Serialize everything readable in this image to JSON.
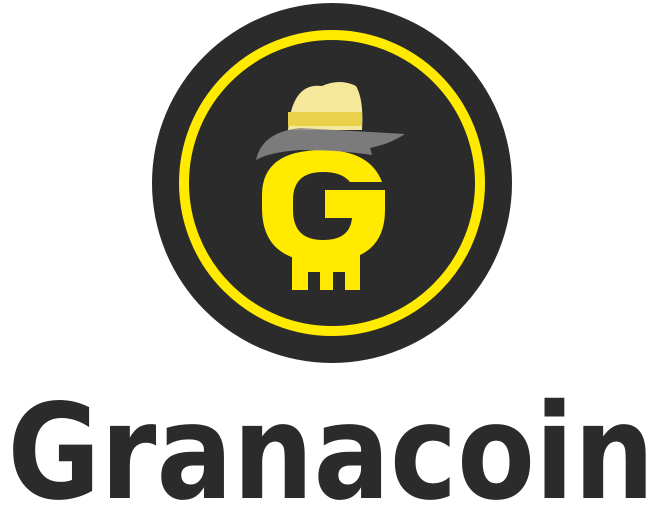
{
  "brand": {
    "name": "Granacoin"
  }
}
